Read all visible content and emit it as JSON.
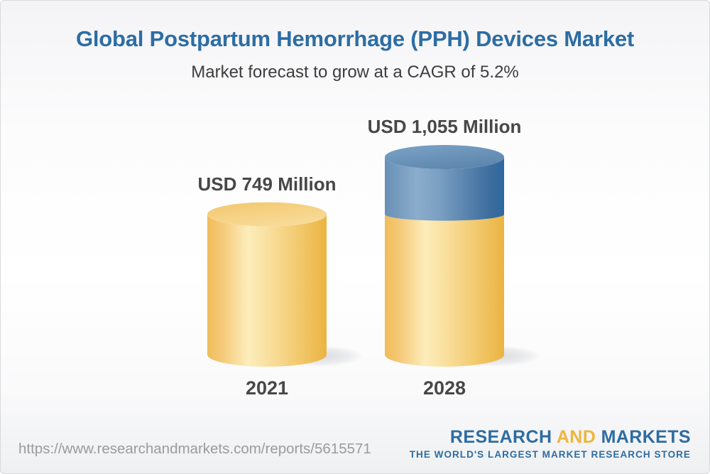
{
  "header": {
    "title": "Global Postpartum Hemorrhage (PPH) Devices Market",
    "subtitle": "Market forecast to grow at a CAGR of 5.2%",
    "title_color": "#2d6da3",
    "cagr_percent": 5.2
  },
  "chart_data": {
    "type": "bar",
    "variant": "3d-cylinder",
    "title": "Global Postpartum Hemorrhage (PPH) Devices Market",
    "subtitle": "Market forecast to grow at a CAGR of 5.2%",
    "unit": "USD Million",
    "categories": [
      "2021",
      "2028"
    ],
    "values": [
      749,
      1055
    ],
    "value_labels": [
      "USD 749 Million",
      "USD 1,055 Million"
    ],
    "grid": false,
    "legend": null,
    "bars": [
      {
        "category": "2021",
        "total": 749,
        "label": "USD 749 Million",
        "segments": [
          {
            "value": 749,
            "palette": "gold"
          }
        ]
      },
      {
        "category": "2028",
        "total": 1055,
        "label": "USD 1,055 Million",
        "segments": [
          {
            "value": 749,
            "palette": "gold"
          },
          {
            "value": 306,
            "palette": "blue"
          }
        ]
      }
    ],
    "palettes": {
      "gold": {
        "side": [
          "#EFBC59",
          "#F4C977",
          "#FDEDBB",
          "#F7D88E",
          "#EBB441"
        ],
        "side_pos": [
          0,
          12,
          34,
          60,
          100
        ],
        "top": [
          "#F3C76E",
          "#F8DB97"
        ]
      },
      "blue": {
        "side": [
          "#6890B6",
          "#8CADCC",
          "#7BA0C3",
          "#3D6D9D",
          "#2F68A0"
        ],
        "side_pos": [
          0,
          27,
          45,
          88,
          100
        ],
        "top": [
          "#7CA3C6",
          "#5E87AF"
        ]
      }
    }
  },
  "footer": {
    "url": "https://www.researchandmarkets.com/reports/5615571",
    "logo": {
      "part1": "RESEARCH",
      "part2": "AND",
      "part3": "MARKETS",
      "tagline": "THE WORLD'S LARGEST MARKET RESEARCH STORE",
      "blue": "#2d6ca2",
      "amber": "#efb53e"
    }
  }
}
